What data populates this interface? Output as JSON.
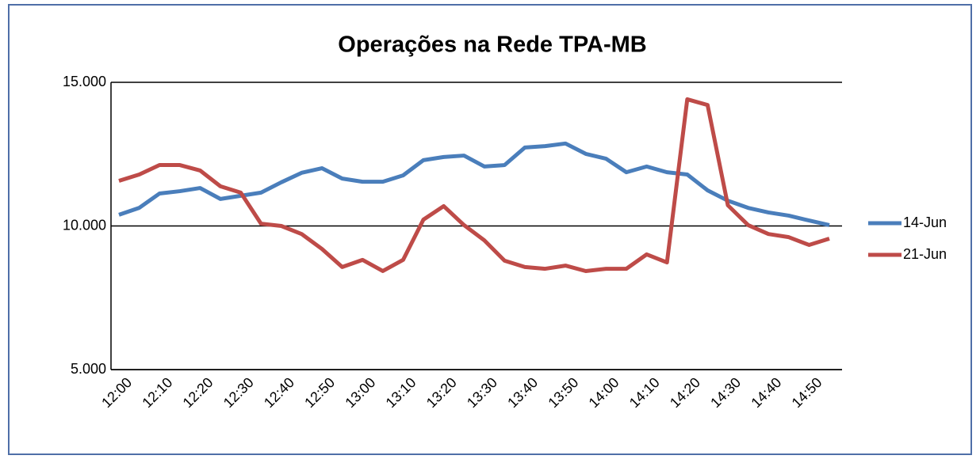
{
  "chart_data": {
    "type": "line",
    "title": "Operações na Rede TPA-MB",
    "categories": [
      "12:00",
      null,
      "12:10",
      null,
      "12:20",
      null,
      "12:30",
      null,
      "12:40",
      null,
      "12:50",
      null,
      "13:00",
      null,
      "13:10",
      null,
      "13:20",
      null,
      "13:30",
      null,
      "13:40",
      null,
      "13:50",
      null,
      "14:00",
      null,
      "14:10",
      null,
      "14:20",
      null,
      "14:30",
      null,
      "14:40",
      null,
      "14:50",
      null
    ],
    "series": [
      {
        "name": "14-Jun",
        "color": "#4a7ebb",
        "values": [
          10390,
          10630,
          11130,
          11210,
          11320,
          10940,
          11050,
          11160,
          11520,
          11850,
          12010,
          11650,
          11540,
          11540,
          11760,
          12290,
          12400,
          12450,
          12070,
          12120,
          12730,
          12780,
          12870,
          12510,
          12340,
          11870,
          12070,
          11870,
          11790,
          11240,
          10880,
          10630,
          10470,
          10360,
          10190,
          10030
        ]
      },
      {
        "name": "21-Jun",
        "color": "#be4b48",
        "values": [
          11570,
          11790,
          12120,
          12120,
          11930,
          11380,
          11160,
          10080,
          10000,
          9720,
          9200,
          8570,
          8820,
          8430,
          8820,
          10220,
          10690,
          10030,
          9500,
          8790,
          8570,
          8510,
          8620,
          8430,
          8510,
          8510,
          9010,
          8730,
          14410,
          14210,
          10720,
          10030,
          9720,
          9610,
          9340,
          9560
        ]
      }
    ],
    "ylim": [
      5000,
      15000
    ],
    "yticks": [
      {
        "value": 5000,
        "label": "5.000"
      },
      {
        "value": 10000,
        "label": "10.000"
      },
      {
        "value": 15000,
        "label": "15.000"
      }
    ],
    "grid": true,
    "legend": "right"
  }
}
